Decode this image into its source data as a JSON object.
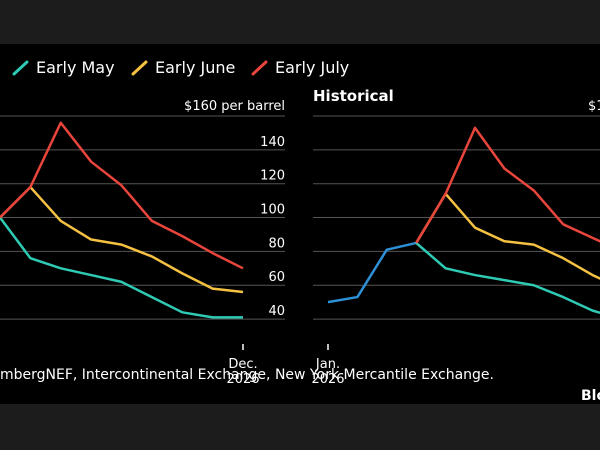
{
  "colors": {
    "background": "#000000",
    "outer": "#1c1c1c",
    "grid": "#555555",
    "early_may": "#2ecab4",
    "early_june": "#f5c142",
    "early_july": "#e8453c",
    "historical": "#2d8fd5"
  },
  "chart_data": {
    "type": "line",
    "legend": {
      "placement": "top-left",
      "items": [
        {
          "label": "Early May",
          "color_key": "early_may"
        },
        {
          "label": "Early June",
          "color_key": "early_june"
        },
        {
          "label": "Early July",
          "color_key": "early_july"
        }
      ]
    },
    "source_text": "mbergNEF, Intercontinental Exchange, New York Mercantile Exchange.",
    "brand_text": "Blo",
    "panels": [
      {
        "id": "forecast",
        "title": "",
        "unit_label": "$160 per barrel",
        "y_ticks": [
          40,
          60,
          80,
          100,
          120,
          140,
          160
        ],
        "y_tick_labels": [
          "40",
          "60",
          "80",
          "100",
          "120",
          "140"
        ],
        "ylim": [
          30,
          160
        ],
        "x_end_label_line1": "Dec.",
        "x_end_label_line2": "2026",
        "grid": true,
        "series": [
          {
            "name": "Early May",
            "color_key": "early_may",
            "values": [
              100,
              76,
              70,
              66,
              62,
              53,
              44,
              41,
              41
            ]
          },
          {
            "name": "Early June",
            "color_key": "early_june",
            "values": [
              100,
              118,
              98,
              87,
              84,
              77,
              67,
              58,
              56
            ]
          },
          {
            "name": "Early July",
            "color_key": "early_july",
            "values": [
              100,
              118,
              156,
              133,
              119,
              98,
              89,
              79,
              70
            ]
          }
        ]
      },
      {
        "id": "historical",
        "title": "Historical",
        "unit_label": "$1",
        "x_start_label_line1": "Jan.",
        "x_start_label_line2": "2026",
        "ylim": [
          30,
          160
        ],
        "grid": true,
        "historical": [
          {
            "x": 0,
            "value": 50
          },
          {
            "x": 1,
            "value": 53
          },
          {
            "x": 2,
            "value": 81
          },
          {
            "x": 3,
            "value": 85
          }
        ],
        "series": [
          {
            "name": "Early May",
            "color_key": "early_may",
            "points": [
              [
                3,
                85
              ],
              [
                4,
                70
              ],
              [
                5,
                66
              ],
              [
                6,
                63
              ],
              [
                7,
                60
              ],
              [
                8,
                53
              ],
              [
                9,
                45
              ],
              [
                10,
                40
              ]
            ]
          },
          {
            "name": "Early June",
            "color_key": "early_june",
            "points": [
              [
                3,
                85
              ],
              [
                4,
                114
              ],
              [
                5,
                94
              ],
              [
                6,
                86
              ],
              [
                7,
                84
              ],
              [
                8,
                76
              ],
              [
                9,
                66
              ],
              [
                10,
                58
              ]
            ]
          },
          {
            "name": "Early July",
            "color_key": "early_july",
            "points": [
              [
                3,
                85
              ],
              [
                4,
                114
              ],
              [
                5,
                153
              ],
              [
                6,
                129
              ],
              [
                7,
                116
              ],
              [
                8,
                96
              ],
              [
                9,
                88
              ],
              [
                10,
                80
              ]
            ]
          }
        ]
      }
    ]
  }
}
